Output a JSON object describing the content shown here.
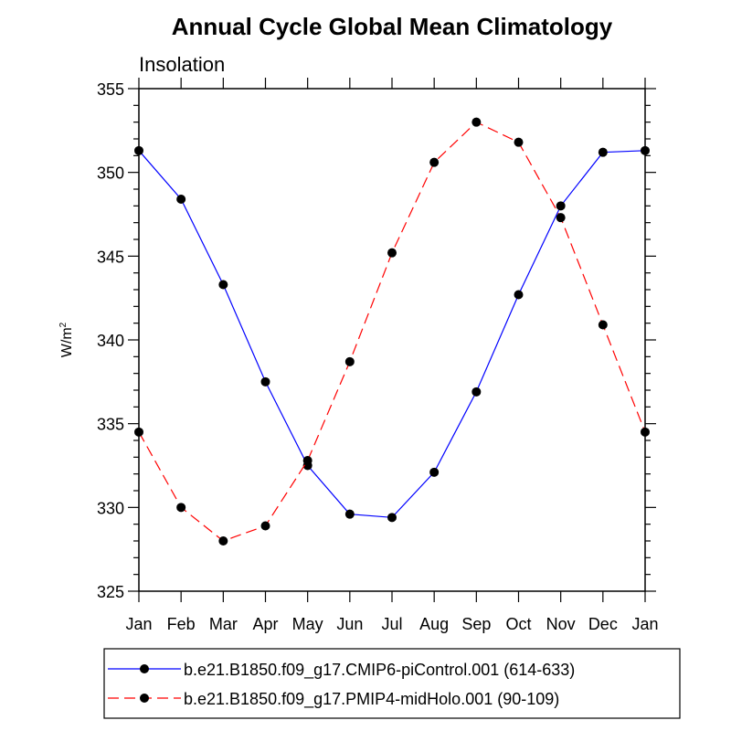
{
  "chart_data": {
    "type": "line",
    "title": "Annual Cycle Global Mean Climatology",
    "subtitle": "Insolation",
    "xlabel": "",
    "ylabel": "W/m",
    "ylabel_superscript": "2",
    "ylim": [
      325,
      355
    ],
    "yticks": [
      325,
      330,
      335,
      340,
      345,
      350,
      355
    ],
    "categories": [
      "Jan",
      "Feb",
      "Mar",
      "Apr",
      "May",
      "Jun",
      "Jul",
      "Aug",
      "Sep",
      "Oct",
      "Nov",
      "Dec",
      "Jan"
    ],
    "grid": false,
    "legend_position": "bottom",
    "series": [
      {
        "name": "b.e21.B1850.f09_g17.CMIP6-piControl.001 (614-633)",
        "color": "#0000ff",
        "dash": "solid",
        "values": [
          351.3,
          348.4,
          343.3,
          337.5,
          332.5,
          329.6,
          329.4,
          332.1,
          336.9,
          342.7,
          348.0,
          351.2,
          351.3
        ]
      },
      {
        "name": "b.e21.B1850.f09_g17.PMIP4-midHolo.001 (90-109)",
        "color": "#ff0000",
        "dash": "dashed",
        "values": [
          334.5,
          330.0,
          328.0,
          328.9,
          332.8,
          338.7,
          345.2,
          350.6,
          353.0,
          351.8,
          347.3,
          340.9,
          334.5
        ]
      }
    ]
  }
}
